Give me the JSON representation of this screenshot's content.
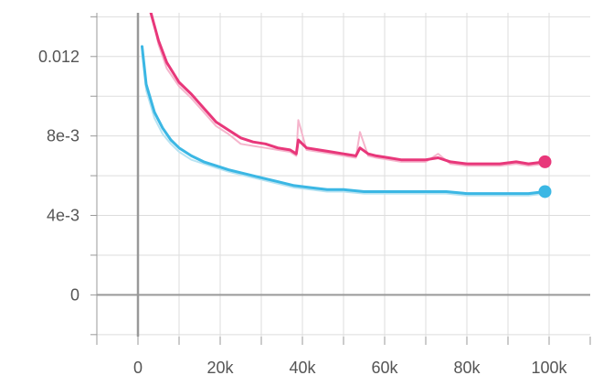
{
  "chart_data": {
    "type": "line",
    "title": "",
    "xlabel": "",
    "ylabel": "",
    "xlim": [
      -10000,
      110000
    ],
    "ylim": [
      -0.0021,
      0.0142
    ],
    "x_ticks": [
      {
        "value": 0,
        "label": "0"
      },
      {
        "value": 20000,
        "label": "20k"
      },
      {
        "value": 40000,
        "label": "40k"
      },
      {
        "value": 60000,
        "label": "60k"
      },
      {
        "value": 80000,
        "label": "80k"
      },
      {
        "value": 100000,
        "label": "100k"
      }
    ],
    "y_ticks": [
      {
        "value": 0,
        "label": "0"
      },
      {
        "value": 0.004,
        "label": "4e-3"
      },
      {
        "value": 0.008,
        "label": "8e-3"
      },
      {
        "value": 0.012,
        "label": "0.012"
      }
    ],
    "grid": true,
    "series": [
      {
        "color": "#e8377a",
        "raw_color": "#f5b5cc",
        "x": [
          3000,
          5000,
          7000,
          10000,
          13000,
          16000,
          19000,
          22000,
          25000,
          28000,
          31000,
          34000,
          37000,
          38500,
          39000,
          41000,
          44000,
          47000,
          50000,
          53000,
          54000,
          56000,
          58000,
          61000,
          64000,
          67000,
          70000,
          73000,
          76000,
          80000,
          84000,
          88000,
          92000,
          95000,
          99000
        ],
        "values": [
          0.0143,
          0.0128,
          0.0117,
          0.0107,
          0.0101,
          0.0094,
          0.0087,
          0.0083,
          0.0079,
          0.0077,
          0.0076,
          0.0074,
          0.0073,
          0.0071,
          0.0078,
          0.0074,
          0.0073,
          0.0072,
          0.0071,
          0.007,
          0.0074,
          0.0071,
          0.007,
          0.0069,
          0.0068,
          0.0068,
          0.0068,
          0.0069,
          0.0067,
          0.0066,
          0.0066,
          0.0066,
          0.0067,
          0.0066,
          0.0067
        ],
        "raw_values": [
          0.0145,
          0.0126,
          0.0114,
          0.0105,
          0.0099,
          0.0092,
          0.0085,
          0.0081,
          0.0076,
          0.0075,
          0.0074,
          0.0073,
          0.0072,
          0.007,
          0.0088,
          0.0073,
          0.0072,
          0.0071,
          0.007,
          0.0069,
          0.0082,
          0.007,
          0.0069,
          0.0068,
          0.0067,
          0.0067,
          0.0067,
          0.0071,
          0.0066,
          0.0065,
          0.0065,
          0.0065,
          0.0066,
          0.0065,
          0.0066
        ],
        "end_value": 0.0067
      },
      {
        "color": "#3bb7e4",
        "raw_color": "#b8e3f2",
        "x": [
          1000,
          2000,
          4000,
          6000,
          8000,
          10000,
          13000,
          16000,
          19000,
          22000,
          26000,
          30000,
          34000,
          38000,
          42000,
          46000,
          50000,
          55000,
          60000,
          65000,
          70000,
          75000,
          80000,
          85000,
          90000,
          95000,
          99000
        ],
        "values": [
          0.0125,
          0.0106,
          0.0092,
          0.0084,
          0.0078,
          0.0074,
          0.007,
          0.0067,
          0.0065,
          0.0063,
          0.0061,
          0.0059,
          0.0057,
          0.0055,
          0.0054,
          0.0053,
          0.0053,
          0.0052,
          0.0052,
          0.0052,
          0.0052,
          0.0052,
          0.0051,
          0.0051,
          0.0051,
          0.0051,
          0.0052
        ],
        "raw_values": [
          0.0122,
          0.0103,
          0.0089,
          0.0081,
          0.0076,
          0.0072,
          0.0068,
          0.0066,
          0.0064,
          0.0062,
          0.006,
          0.0058,
          0.0056,
          0.0054,
          0.0053,
          0.0052,
          0.0052,
          0.0051,
          0.0051,
          0.0051,
          0.0051,
          0.0051,
          0.005,
          0.005,
          0.005,
          0.005,
          0.0051
        ],
        "end_value": 0.0052
      }
    ]
  }
}
